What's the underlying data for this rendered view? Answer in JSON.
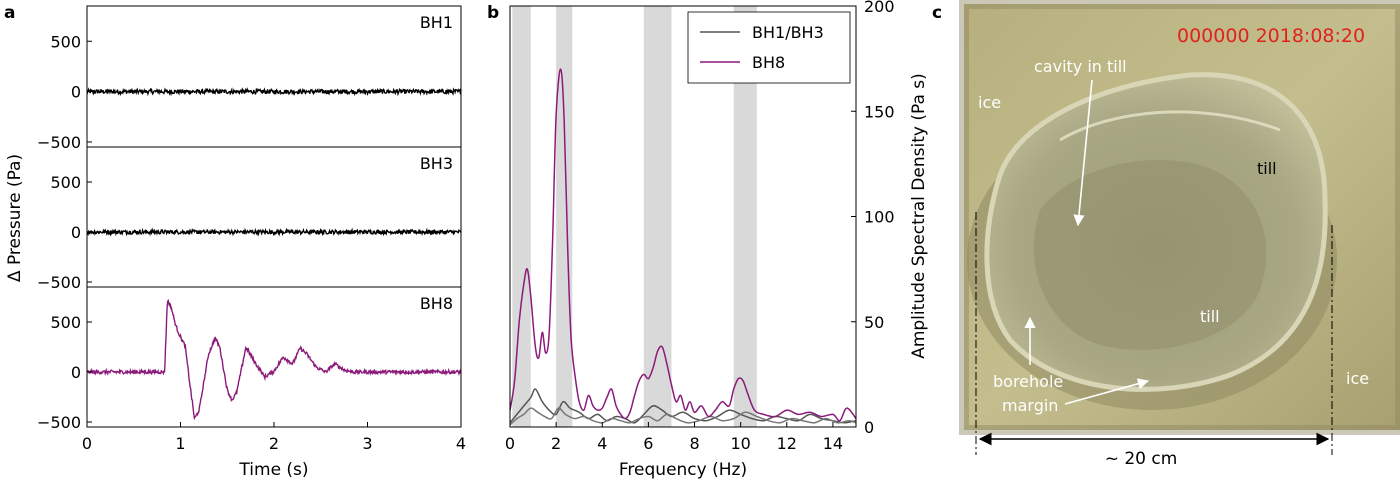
{
  "panels": {
    "a": {
      "letter": "a"
    },
    "b": {
      "letter": "b"
    },
    "c": {
      "letter": "c"
    }
  },
  "colors": {
    "bh8": "#8b1a7a",
    "bh13": "#555555",
    "black": "#000000",
    "band": "#d9d9d9"
  },
  "chart_data": [
    {
      "id": "a",
      "type": "line",
      "xlabel": "Time (s)",
      "ylabel": "Δ Pressure (Pa)",
      "xlim": [
        0,
        4
      ],
      "xticks": [
        0,
        1,
        2,
        3,
        4
      ],
      "ylim": [
        -550,
        850
      ],
      "yticks": [
        -500,
        0,
        500
      ],
      "ytick_labels": [
        "−500",
        "0",
        "500"
      ],
      "subplots": [
        {
          "label": "BH1",
          "color": "#000000",
          "series": {
            "noise_amplitude": 22
          }
        },
        {
          "label": "BH3",
          "color": "#000000",
          "series": {
            "noise_amplitude": 20
          }
        },
        {
          "label": "BH8",
          "color": "#8b1a7a",
          "series": {
            "noise_amplitude": 18,
            "x": [
              0,
              0.83,
              0.86,
              0.9,
              0.95,
              1.0,
              1.05,
              1.1,
              1.15,
              1.2,
              1.3,
              1.37,
              1.42,
              1.5,
              1.55,
              1.6,
              1.7,
              1.8,
              1.9,
              2.0,
              2.1,
              2.2,
              2.28,
              2.35,
              2.45,
              2.55,
              2.65,
              2.75,
              2.85,
              3.0,
              3.2,
              4.0
            ],
            "y": [
              0,
              0,
              720,
              650,
              460,
              350,
              260,
              -120,
              -470,
              -380,
              180,
              340,
              250,
              -180,
              -280,
              -210,
              250,
              90,
              -50,
              10,
              150,
              80,
              240,
              180,
              50,
              0,
              80,
              20,
              0,
              0,
              0,
              0
            ]
          }
        }
      ]
    },
    {
      "id": "b",
      "type": "line",
      "xlabel": "Frequency (Hz)",
      "ylabel": "Amplitude Spectral Density (Pa s)",
      "xlim": [
        0,
        15
      ],
      "xticks": [
        0,
        2,
        4,
        6,
        8,
        10,
        12,
        14
      ],
      "ylim": [
        0,
        200
      ],
      "yticks": [
        0,
        50,
        100,
        150,
        200
      ],
      "bands": [
        [
          0.1,
          0.9
        ],
        [
          2.0,
          2.7
        ],
        [
          5.8,
          7.0
        ],
        [
          9.7,
          10.7
        ]
      ],
      "legend": {
        "placement": "top-right",
        "entries": [
          "BH1/BH3",
          "BH8"
        ]
      },
      "series": [
        {
          "name": "BH8",
          "color": "#8b1a7a",
          "x": [
            0,
            0.2,
            0.4,
            0.6,
            0.75,
            0.9,
            1.1,
            1.25,
            1.4,
            1.55,
            1.7,
            1.85,
            2.0,
            2.2,
            2.35,
            2.5,
            2.65,
            2.85,
            3.0,
            3.2,
            3.4,
            3.6,
            3.8,
            4.0,
            4.2,
            4.4,
            4.6,
            4.8,
            5.0,
            5.2,
            5.4,
            5.6,
            5.8,
            6.0,
            6.2,
            6.4,
            6.6,
            6.8,
            7.0,
            7.2,
            7.4,
            7.6,
            7.8,
            8.0,
            8.3,
            8.6,
            8.9,
            9.2,
            9.5,
            9.7,
            9.9,
            10.1,
            10.3,
            10.6,
            11.0,
            11.5,
            12.0,
            12.5,
            13.0,
            13.5,
            14.0,
            14.3,
            14.6,
            15.0
          ],
          "y": [
            8,
            22,
            50,
            68,
            75,
            62,
            38,
            33,
            45,
            35,
            45,
            90,
            148,
            170,
            145,
            85,
            42,
            22,
            12,
            8,
            15,
            10,
            8,
            9,
            14,
            18,
            10,
            6,
            4,
            7,
            15,
            22,
            25,
            23,
            28,
            36,
            38,
            30,
            20,
            12,
            15,
            8,
            12,
            7,
            10,
            5,
            8,
            12,
            10,
            18,
            23,
            22,
            16,
            8,
            6,
            5,
            8,
            6,
            7,
            5,
            6,
            3,
            9,
            4
          ]
        },
        {
          "name": "BH1/BH3",
          "color": "#555555",
          "x": [
            0,
            0.3,
            0.6,
            0.9,
            1.1,
            1.4,
            1.7,
            2.0,
            2.3,
            2.6,
            3.0,
            3.4,
            3.8,
            4.2,
            4.6,
            5.0,
            5.4,
            5.8,
            6.2,
            6.6,
            7.0,
            7.5,
            8.0,
            8.5,
            9.0,
            9.5,
            10.0,
            10.5,
            11.0,
            11.5,
            12.0,
            12.5,
            13.0,
            13.5,
            14.0,
            14.5,
            15.0
          ],
          "y": [
            2,
            6,
            10,
            14,
            18,
            12,
            8,
            6,
            12,
            9,
            7,
            4,
            6,
            3,
            5,
            4,
            2,
            6,
            10,
            8,
            5,
            7,
            4,
            3,
            5,
            8,
            6,
            4,
            3,
            5,
            4,
            3,
            6,
            4,
            3,
            2,
            3
          ]
        },
        {
          "name": "BH1/BH3",
          "color": "#777777",
          "x": [
            0,
            0.3,
            0.6,
            0.9,
            1.2,
            1.5,
            1.8,
            2.1,
            2.4,
            2.8,
            3.2,
            3.6,
            4.0,
            4.4,
            4.8,
            5.2,
            5.6,
            6.0,
            6.4,
            6.8,
            7.2,
            7.7,
            8.2,
            8.7,
            9.2,
            9.7,
            10.2,
            10.7,
            11.2,
            11.7,
            12.2,
            12.7,
            13.2,
            13.7,
            14.2,
            14.7,
            15.0
          ],
          "y": [
            1,
            4,
            6,
            9,
            7,
            5,
            4,
            9,
            6,
            4,
            5,
            3,
            2,
            4,
            3,
            2,
            4,
            5,
            3,
            6,
            4,
            2,
            3,
            5,
            3,
            4,
            7,
            5,
            3,
            2,
            4,
            3,
            2,
            4,
            2,
            3,
            2
          ]
        }
      ]
    }
  ],
  "photo": {
    "timestamp": "000000 2018:08:20",
    "labels": {
      "ice_left": "ice",
      "cavity": "cavity in till",
      "till_upper": "till",
      "till_lower": "till",
      "borehole": "borehole",
      "margin": "margin",
      "ice_right": "ice",
      "scale": "~ 20 cm"
    }
  }
}
